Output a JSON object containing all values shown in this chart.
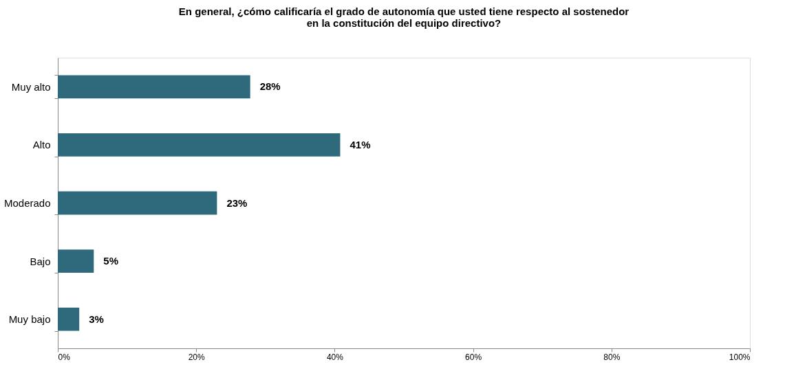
{
  "chart_data": {
    "type": "bar",
    "orientation": "horizontal",
    "title": "En general, ¿cómo calificaría el grado de autonomía que usted tiene respecto al sostenedor\nen la constitución del equipo directivo?",
    "categories": [
      "Muy alto",
      "Alto",
      "Moderado",
      "Bajo",
      "Muy bajo"
    ],
    "values": [
      27.8,
      40.8,
      23.0,
      5.2,
      3.1
    ],
    "value_labels": [
      "28%",
      "41%",
      "23%",
      "5%",
      "3%"
    ],
    "color": "#2e6a7b",
    "xlim": [
      0,
      100
    ],
    "xticks": [
      {
        "value": 0,
        "label": "0%"
      },
      {
        "value": 20,
        "label": "20%"
      },
      {
        "value": 40,
        "label": "40%"
      },
      {
        "value": 60,
        "label": "60%"
      },
      {
        "value": 80,
        "label": "80%"
      },
      {
        "value": 100,
        "label": "100%"
      }
    ],
    "grid": false
  }
}
